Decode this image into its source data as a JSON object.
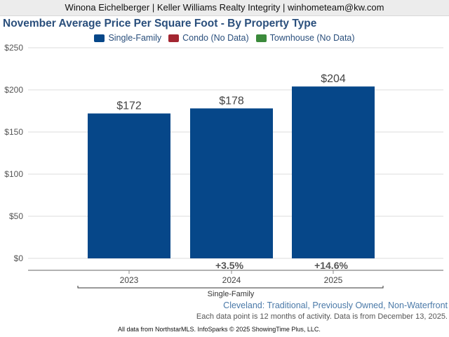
{
  "header": {
    "text": "Winona Eichelberger | Keller Williams Realty Integrity | winhometeam@kw.com"
  },
  "chart_data": {
    "type": "bar",
    "title": "November Average Price Per Square Foot - By Property Type",
    "categories": [
      "2023",
      "2024",
      "2025"
    ],
    "series": [
      {
        "name": "Single-Family",
        "values": [
          172,
          178,
          204
        ],
        "color": "#064789"
      }
    ],
    "data_labels": [
      "$172",
      "$178",
      "$204"
    ],
    "change_labels": [
      "",
      "+3.5%",
      "+14.6%"
    ],
    "legend": [
      {
        "label": "Single-Family",
        "color": "#064789"
      },
      {
        "label": "Condo (No Data)",
        "color": "#a32631"
      },
      {
        "label": "Townhouse (No Data)",
        "color": "#3b8a3b"
      }
    ],
    "legend_position": "top-center",
    "y_ticks": [
      "$0",
      "$50",
      "$100",
      "$150",
      "$200",
      "$250"
    ],
    "y_tick_values": [
      0,
      50,
      100,
      150,
      200,
      250
    ],
    "ylim": [
      0,
      250
    ],
    "group_label": "Single-Family",
    "grid": true
  },
  "notes": {
    "location": "Cleveland: Traditional, Previously Owned, Non-Waterfront",
    "period": "Each data point is 12 months of activity. Data is from December 13, 2025."
  },
  "footer": {
    "text": "All data from NorthstarMLS. InfoSparks © 2025 ShowingTime Plus, LLC."
  }
}
